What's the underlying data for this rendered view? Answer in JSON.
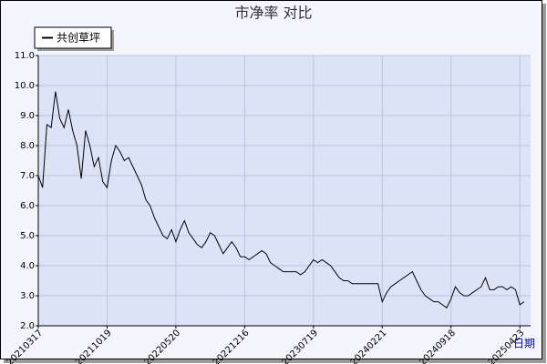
{
  "chart_data": {
    "type": "line",
    "title": "市净率  对比",
    "x_label": "日期",
    "categories": [
      "20210317",
      null,
      null,
      null,
      null,
      null,
      null,
      null,
      null,
      null,
      null,
      null,
      null,
      null,
      null,
      null,
      "20211019",
      null,
      null,
      null,
      null,
      null,
      null,
      null,
      null,
      null,
      null,
      null,
      null,
      null,
      null,
      null,
      "20220520",
      null,
      null,
      null,
      null,
      null,
      null,
      null,
      null,
      null,
      null,
      null,
      null,
      null,
      null,
      null,
      "20221216",
      null,
      null,
      null,
      null,
      null,
      null,
      null,
      null,
      null,
      null,
      null,
      null,
      null,
      null,
      null,
      "20230719",
      null,
      null,
      null,
      null,
      null,
      null,
      null,
      null,
      null,
      null,
      null,
      null,
      null,
      null,
      null,
      "20240221",
      null,
      null,
      null,
      null,
      null,
      null,
      null,
      null,
      null,
      null,
      null,
      null,
      null,
      null,
      null,
      "20240918",
      null,
      null,
      null,
      null,
      null,
      null,
      null,
      null,
      null,
      null,
      null,
      null,
      null,
      null,
      null,
      "20250423",
      null
    ],
    "series": [
      {
        "name": "共创草坪",
        "color": "#000000",
        "values": [
          7.0,
          6.6,
          8.7,
          8.6,
          9.8,
          8.9,
          8.6,
          9.2,
          8.5,
          8.0,
          6.9,
          8.5,
          8.0,
          7.3,
          7.6,
          6.8,
          6.6,
          7.5,
          8.0,
          7.8,
          7.5,
          7.6,
          7.3,
          7.0,
          6.7,
          6.2,
          6.0,
          5.6,
          5.3,
          5.0,
          4.9,
          5.2,
          4.8,
          5.2,
          5.5,
          5.1,
          4.9,
          4.7,
          4.6,
          4.8,
          5.1,
          5.0,
          4.7,
          4.4,
          4.6,
          4.8,
          4.6,
          4.3,
          4.3,
          4.2,
          4.3,
          4.4,
          4.5,
          4.4,
          4.1,
          4.0,
          3.9,
          3.8,
          3.8,
          3.8,
          3.8,
          3.7,
          3.8,
          4.0,
          4.2,
          4.1,
          4.2,
          4.1,
          4.0,
          3.8,
          3.6,
          3.5,
          3.5,
          3.4,
          3.4,
          3.4,
          3.4,
          3.4,
          3.4,
          3.4,
          2.8,
          3.1,
          3.3,
          3.4,
          3.5,
          3.6,
          3.7,
          3.8,
          3.5,
          3.2,
          3.0,
          2.9,
          2.8,
          2.8,
          2.7,
          2.6,
          2.9,
          3.3,
          3.1,
          3.0,
          3.0,
          3.1,
          3.2,
          3.3,
          3.6,
          3.2,
          3.2,
          3.3,
          3.3,
          3.2,
          3.3,
          3.2,
          2.7,
          2.8
        ]
      }
    ],
    "ylim": [
      2,
      11
    ],
    "yticks": [
      {
        "value": 2,
        "label": "2.0"
      },
      {
        "value": 3,
        "label": "3.0"
      },
      {
        "value": 4,
        "label": "4.0"
      },
      {
        "value": 5,
        "label": "5.0"
      },
      {
        "value": 6,
        "label": "6.0"
      },
      {
        "value": 7,
        "label": "7.0"
      },
      {
        "value": 8,
        "label": "8.0"
      },
      {
        "value": 9,
        "label": "9.0"
      },
      {
        "value": 10,
        "label": "10.0"
      },
      {
        "value": 11,
        "label": "11.0"
      }
    ],
    "grid": true,
    "legend": "upper left"
  }
}
